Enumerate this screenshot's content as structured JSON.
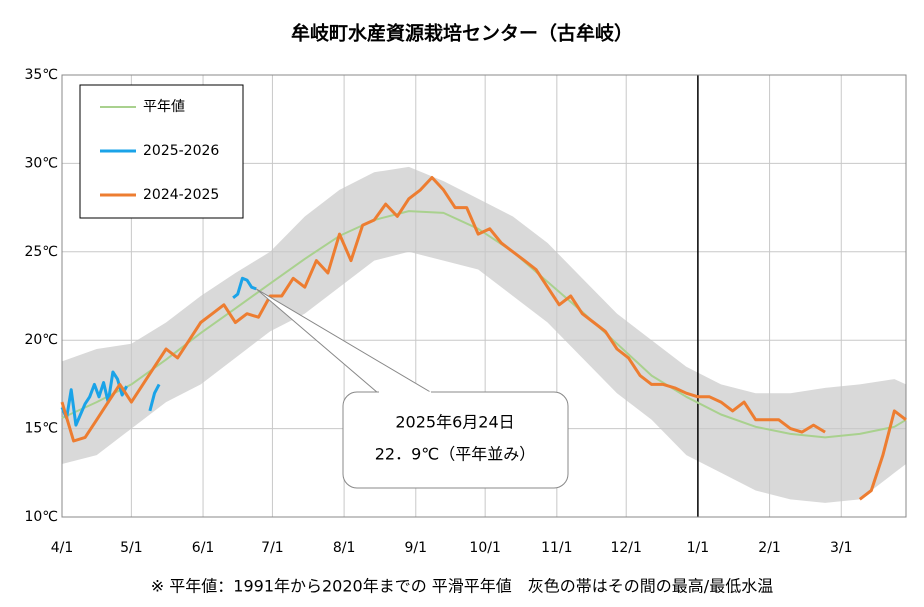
{
  "chart_data": {
    "type": "line",
    "title": "牟岐町水産資源栽培センター（古牟岐）",
    "footnote": "※ 平年値：1991年から2020年までの 平滑平年値　灰色の帯はその間の最高/最低水温",
    "xlim": [
      0,
      365
    ],
    "ylim": [
      10,
      35
    ],
    "xticks": [
      {
        "value": 0,
        "label": "4/1"
      },
      {
        "value": 30,
        "label": "5/1"
      },
      {
        "value": 61,
        "label": "6/1"
      },
      {
        "value": 91,
        "label": "7/1"
      },
      {
        "value": 122,
        "label": "8/1"
      },
      {
        "value": 153,
        "label": "9/1"
      },
      {
        "value": 183,
        "label": "10/1"
      },
      {
        "value": 214,
        "label": "11/1"
      },
      {
        "value": 244,
        "label": "12/1"
      },
      {
        "value": 275,
        "label": "1/1"
      },
      {
        "value": 306,
        "label": "2/1"
      },
      {
        "value": 337,
        "label": "3/1"
      }
    ],
    "yticks": [
      {
        "value": 10,
        "label": "10℃"
      },
      {
        "value": 15,
        "label": "15℃"
      },
      {
        "value": 20,
        "label": "20℃"
      },
      {
        "value": 25,
        "label": "25℃"
      },
      {
        "value": 30,
        "label": "30℃"
      },
      {
        "value": 35,
        "label": "35℃"
      }
    ],
    "grid": true,
    "legend": "top-left",
    "vline": 275,
    "vline_color": "#000000",
    "band": {
      "color": "#d9d9d9",
      "x": [
        0,
        15,
        30,
        45,
        60,
        75,
        90,
        105,
        120,
        135,
        150,
        165,
        180,
        195,
        210,
        225,
        240,
        255,
        270,
        285,
        300,
        315,
        330,
        345,
        360,
        365
      ],
      "upper": [
        18.8,
        19.5,
        19.8,
        21,
        22.5,
        23.8,
        25,
        27,
        28.5,
        29.5,
        29.8,
        29,
        28,
        27,
        25.5,
        23.5,
        21.5,
        20,
        18.5,
        17.5,
        17,
        17,
        17.3,
        17.5,
        17.8,
        17.5
      ],
      "lower": [
        13,
        13.5,
        15,
        16.5,
        17.5,
        19,
        20.5,
        21.5,
        23,
        24.5,
        25,
        24.5,
        24,
        22.5,
        21,
        19,
        17,
        15.5,
        13.5,
        12.5,
        11.5,
        11,
        10.8,
        11,
        12.5,
        13
      ]
    },
    "series": [
      {
        "name": "平年値",
        "color": "#a9d18e",
        "x": [
          0,
          15,
          30,
          45,
          60,
          75,
          90,
          105,
          120,
          135,
          150,
          165,
          180,
          195,
          210,
          225,
          240,
          255,
          270,
          285,
          300,
          315,
          330,
          345,
          360,
          365
        ],
        "values": [
          15.6,
          16.5,
          17.5,
          18.9,
          20.4,
          21.8,
          23.2,
          24.6,
          25.9,
          26.8,
          27.3,
          27.2,
          26.3,
          25.0,
          23.3,
          21.6,
          19.8,
          18.0,
          16.8,
          15.8,
          15.1,
          14.7,
          14.5,
          14.7,
          15.1,
          15.5
        ]
      },
      {
        "name": "2025-2026",
        "color": "#1aa3e8",
        "x": [
          0,
          2,
          4,
          6,
          8,
          10,
          12,
          14,
          16,
          18,
          20,
          22,
          24,
          26,
          28,
          30,
          32,
          34,
          36,
          38,
          40,
          42,
          44,
          46,
          48,
          50,
          52,
          54,
          56,
          58,
          60,
          62,
          64,
          66,
          68,
          70,
          72,
          74,
          76,
          78,
          80,
          82,
          84
        ],
        "values": [
          16.2,
          15.6,
          17.2,
          15.2,
          15.8,
          16.4,
          16.8,
          17.5,
          16.8,
          17.6,
          16.5,
          18.2,
          17.8,
          16.9,
          17.4,
          null,
          null,
          null,
          null,
          16.0,
          17.0,
          17.5,
          null,
          null,
          null,
          null,
          null,
          null,
          null,
          null,
          null,
          null,
          null,
          null,
          null,
          null,
          null,
          22.4,
          22.6,
          23.5,
          23.4,
          23.0,
          22.9
        ]
      },
      {
        "name": "2024-2025",
        "color": "#ed7d31",
        "x": [
          0,
          5,
          10,
          15,
          20,
          25,
          30,
          35,
          40,
          45,
          50,
          55,
          60,
          65,
          70,
          75,
          80,
          85,
          90,
          95,
          100,
          105,
          110,
          115,
          120,
          125,
          130,
          135,
          140,
          145,
          150,
          155,
          160,
          165,
          170,
          175,
          180,
          185,
          190,
          195,
          200,
          205,
          210,
          215,
          220,
          225,
          230,
          235,
          240,
          245,
          250,
          255,
          260,
          265,
          270,
          275,
          280,
          285,
          290,
          295,
          300,
          305,
          310,
          315,
          320,
          325,
          330,
          335,
          340,
          345,
          350,
          355,
          360,
          365
        ],
        "values": [
          16.5,
          14.3,
          14.5,
          15.5,
          16.5,
          17.5,
          16.5,
          17.5,
          18.5,
          19.5,
          19,
          20,
          21,
          21.5,
          22,
          21,
          21.5,
          21.3,
          22.5,
          22.5,
          23.5,
          23,
          24.5,
          23.8,
          26,
          24.5,
          26.5,
          26.8,
          27.7,
          27,
          28,
          28.5,
          29.2,
          28.5,
          27.5,
          27.5,
          26,
          26.3,
          25.5,
          25,
          24.5,
          24,
          23,
          22,
          22.5,
          21.5,
          21,
          20.5,
          19.5,
          19,
          18,
          17.5,
          17.5,
          17.3,
          17,
          16.8,
          16.8,
          16.5,
          16,
          16.5,
          15.5,
          15.5,
          15.5,
          15.0,
          14.8,
          15.2,
          14.8,
          null,
          null,
          11,
          11.5,
          13.5,
          16,
          15.5
        ]
      }
    ],
    "annotation": {
      "lines": [
        "2025年6月24日",
        "22．9℃（平年並み）"
      ],
      "x": 84,
      "y": 22.9
    }
  }
}
